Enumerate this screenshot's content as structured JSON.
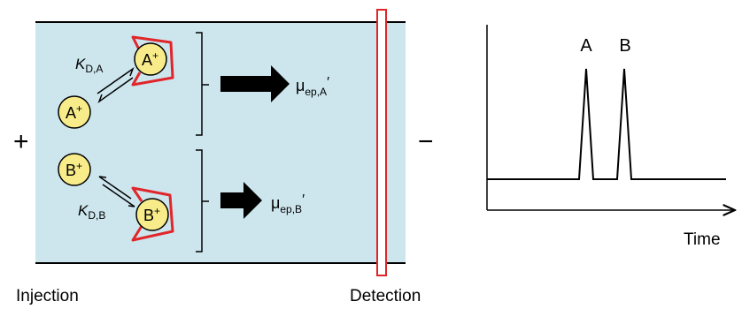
{
  "electrodes": {
    "positive": "+",
    "negative": "−"
  },
  "labels": {
    "injection": "Injection",
    "detection": "Detection"
  },
  "species": {
    "a": "A",
    "b": "B",
    "charge": "+"
  },
  "constants": {
    "k": "K",
    "ka_sub": "D,A",
    "kb_sub": "D,B"
  },
  "mobility": {
    "mu": "μ",
    "a_sub": "ep,A",
    "b_sub": "ep,B",
    "prime": "′"
  },
  "electropherogram": {
    "peak_a": "A",
    "peak_b": "B",
    "x_axis": "Time"
  },
  "colors": {
    "capillary_fill": "#cde6ee",
    "selector_red": "#e0262b",
    "analyte_yellow": "#f8ec8a",
    "line": "#000000"
  }
}
